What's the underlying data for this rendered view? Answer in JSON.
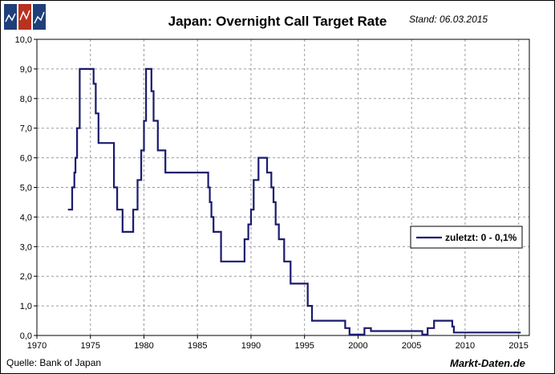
{
  "chart_data": {
    "type": "line",
    "title": "Japan: Overnight Call Target Rate",
    "as_of": "Stand: 06.03.2015",
    "source": "Quelle: Bank of Japan",
    "brand": "Markt-Daten.de",
    "legend": {
      "label": "zuletzt: 0 - 0,1%",
      "position": "right"
    },
    "xlim": [
      1970,
      2016
    ],
    "ylim": [
      0,
      10
    ],
    "x_ticks": [
      1970,
      1975,
      1980,
      1985,
      1990,
      1995,
      2000,
      2005,
      2010,
      2015
    ],
    "x_tick_labels": [
      "1970",
      "1975",
      "1980",
      "1985",
      "1990",
      "1995",
      "2000",
      "2005",
      "2010",
      "2015"
    ],
    "y_ticks": [
      0,
      1,
      2,
      3,
      4,
      5,
      6,
      7,
      8,
      9,
      10
    ],
    "y_tick_labels": [
      "0,0",
      "1,0",
      "2,0",
      "3,0",
      "4,0",
      "5,0",
      "6,0",
      "7,0",
      "8,0",
      "9,0",
      "10,0"
    ],
    "series": [
      {
        "name": "Overnight Call Target Rate",
        "color": "#1a1a6e",
        "step": true,
        "points": [
          [
            1972.9,
            4.25
          ],
          [
            1973.3,
            5.0
          ],
          [
            1973.5,
            5.5
          ],
          [
            1973.6,
            6.0
          ],
          [
            1973.75,
            7.0
          ],
          [
            1974.0,
            9.0
          ],
          [
            1975.3,
            8.5
          ],
          [
            1975.5,
            7.5
          ],
          [
            1975.75,
            6.5
          ],
          [
            1977.2,
            5.0
          ],
          [
            1977.5,
            4.25
          ],
          [
            1978.0,
            3.5
          ],
          [
            1979.0,
            4.25
          ],
          [
            1979.4,
            5.25
          ],
          [
            1979.75,
            6.25
          ],
          [
            1980.0,
            7.25
          ],
          [
            1980.2,
            9.0
          ],
          [
            1980.7,
            8.25
          ],
          [
            1980.9,
            7.25
          ],
          [
            1981.3,
            6.25
          ],
          [
            1982.0,
            5.5
          ],
          [
            1986.0,
            5.0
          ],
          [
            1986.15,
            4.5
          ],
          [
            1986.3,
            4.0
          ],
          [
            1986.5,
            3.5
          ],
          [
            1987.2,
            2.5
          ],
          [
            1989.4,
            3.25
          ],
          [
            1989.75,
            3.75
          ],
          [
            1990.0,
            4.25
          ],
          [
            1990.25,
            5.25
          ],
          [
            1990.7,
            6.0
          ],
          [
            1991.5,
            5.5
          ],
          [
            1991.9,
            5.0
          ],
          [
            1992.1,
            4.5
          ],
          [
            1992.3,
            3.75
          ],
          [
            1992.6,
            3.25
          ],
          [
            1993.1,
            2.5
          ],
          [
            1993.7,
            1.75
          ],
          [
            1995.3,
            1.0
          ],
          [
            1995.7,
            0.5
          ],
          [
            1998.8,
            0.25
          ],
          [
            1999.2,
            0.03
          ],
          [
            2000.6,
            0.25
          ],
          [
            2001.2,
            0.15
          ],
          [
            2006.0,
            0.03
          ],
          [
            2006.5,
            0.25
          ],
          [
            2007.1,
            0.5
          ],
          [
            2008.8,
            0.3
          ],
          [
            2008.95,
            0.1
          ],
          [
            2015.2,
            0.1
          ]
        ]
      }
    ]
  }
}
